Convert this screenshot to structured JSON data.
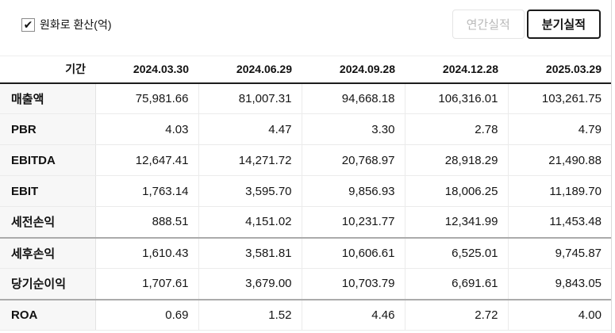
{
  "controls": {
    "checkbox": {
      "label": "원화로 환산(억)",
      "checked": true,
      "checkmark": "✔"
    },
    "buttons": [
      {
        "label": "연간실적",
        "active": false
      },
      {
        "label": "분기실적",
        "active": true
      }
    ]
  },
  "table": {
    "period_header": "기간",
    "columns": [
      "2024.03.30",
      "2024.06.29",
      "2024.09.28",
      "2024.12.28",
      "2025.03.29"
    ],
    "rows": [
      {
        "label": "매출액",
        "values": [
          "75,981.66",
          "81,007.31",
          "94,668.18",
          "106,316.01",
          "103,261.75"
        ],
        "section_start": false
      },
      {
        "label": "PBR",
        "values": [
          "4.03",
          "4.47",
          "3.30",
          "2.78",
          "4.79"
        ],
        "section_start": false
      },
      {
        "label": "EBITDA",
        "values": [
          "12,647.41",
          "14,271.72",
          "20,768.97",
          "28,918.29",
          "21,490.88"
        ],
        "section_start": false
      },
      {
        "label": "EBIT",
        "values": [
          "1,763.14",
          "3,595.70",
          "9,856.93",
          "18,006.25",
          "11,189.70"
        ],
        "section_start": false
      },
      {
        "label": "세전손익",
        "values": [
          "888.51",
          "4,151.02",
          "10,231.77",
          "12,341.99",
          "11,453.48"
        ],
        "section_start": false
      },
      {
        "label": "세후손익",
        "values": [
          "1,610.43",
          "3,581.81",
          "10,606.61",
          "6,525.01",
          "9,745.87"
        ],
        "section_start": true
      },
      {
        "label": "당기순이익",
        "values": [
          "1,707.61",
          "3,679.00",
          "10,703.79",
          "6,691.61",
          "9,843.05"
        ],
        "section_start": false
      },
      {
        "label": "ROA",
        "values": [
          "0.69",
          "1.52",
          "4.46",
          "2.72",
          "4.00"
        ],
        "section_start": true
      }
    ]
  },
  "colors": {
    "header_border": "#1c1c1c",
    "row_border": "#ebebeb",
    "section_border": "#ababab",
    "label_bg": "#f7f7f7",
    "active_button_border": "#1a1a1a",
    "inactive_button_text": "#b9b9b9"
  }
}
